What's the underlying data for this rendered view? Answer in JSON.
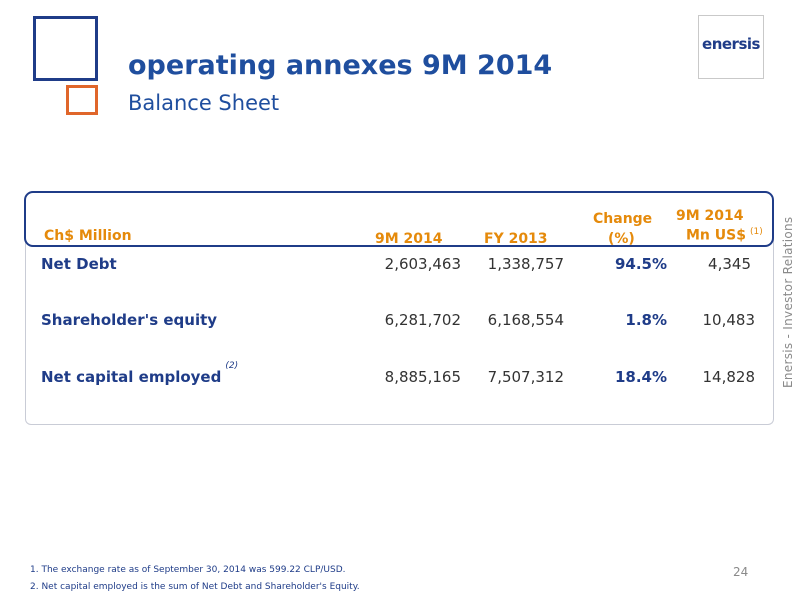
{
  "title": "operating annexes 9M 2014",
  "subtitle": "Balance Sheet",
  "logo": "enersis",
  "side_text": "Enersis - Investor Relations",
  "table": {
    "headers": {
      "label": "Ch$ Million",
      "col1": "9M 2014",
      "col2": "FY 2013",
      "col3_line1": "Change",
      "col3_line2": "(%)",
      "col4_line1": "9M 2014",
      "col4_line2": "Mn US$",
      "col4_note": "(1)"
    },
    "rows": [
      {
        "label": "Net Debt",
        "note": "",
        "v1": "2,603,463",
        "v2": "1,338,757",
        "change": "94.5%",
        "usd": "4,345"
      },
      {
        "label": "Shareholder's equity",
        "note": "",
        "v1": "6,281,702",
        "v2": "6,168,554",
        "change": "1.8%",
        "usd": "10,483"
      },
      {
        "label": "Net capital employed",
        "note": "(2)",
        "v1": "8,885,165",
        "v2": "7,507,312",
        "change": "18.4%",
        "usd": "14,828"
      }
    ]
  },
  "footnotes": [
    "1. The exchange rate as of September 30, 2014 was 599.22 CLP/USD.",
    "2. Net capital employed is the sum of Net Debt and Shareholder's Equity."
  ],
  "page_number": "24",
  "colors": {
    "brand_blue": "#1f3c88",
    "accent_orange": "#e58a0b",
    "square_orange": "#e0662a"
  }
}
